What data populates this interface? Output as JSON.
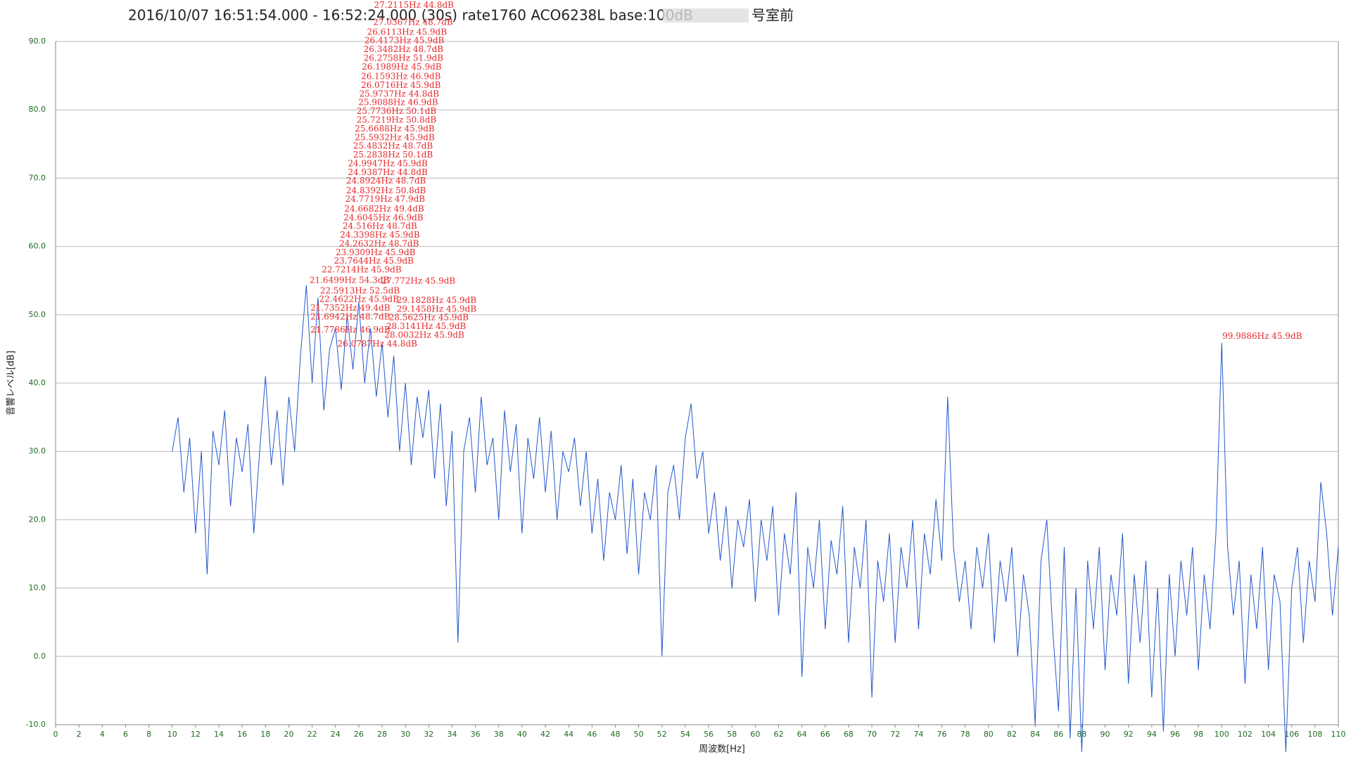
{
  "chart_data": {
    "type": "line",
    "title": "2016/10/07 16:51:54.000 - 16:52:24.000 (30s) rate1760 ACO6238L base:100dB",
    "title_suffix": "号室前",
    "y_label": "音響レベル[dB]",
    "x_label": "周波数[Hz]",
    "color": "#2458cc",
    "grid": true,
    "xlim": [
      0,
      110
    ],
    "xticks": [
      0,
      2,
      4,
      6,
      8,
      10,
      12,
      14,
      16,
      18,
      20,
      22,
      24,
      26,
      28,
      30,
      32,
      34,
      36,
      38,
      40,
      42,
      44,
      46,
      48,
      50,
      52,
      54,
      56,
      58,
      60,
      62,
      64,
      66,
      68,
      70,
      72,
      74,
      76,
      78,
      80,
      82,
      84,
      86,
      88,
      90,
      92,
      94,
      96,
      98,
      100,
      102,
      104,
      106,
      108,
      110
    ],
    "ylim": [
      -10,
      90
    ],
    "yticks": [
      {
        "value": -10,
        "label": "-10.0"
      },
      {
        "value": 0,
        "label": "0.0"
      },
      {
        "value": 10,
        "label": "10.0"
      },
      {
        "value": 20,
        "label": "20.0"
      },
      {
        "value": 30,
        "label": "30.0"
      },
      {
        "value": 40,
        "label": "40.0"
      },
      {
        "value": 50,
        "label": "50.0"
      },
      {
        "value": 60,
        "label": "60.0"
      },
      {
        "value": 70,
        "label": "70.0"
      },
      {
        "value": 80,
        "label": "80.0"
      },
      {
        "value": 90,
        "label": "90.0"
      }
    ],
    "x": [
      10,
      10.5,
      11,
      11.5,
      12,
      12.5,
      13,
      13.5,
      14,
      14.5,
      15,
      15.5,
      16,
      16.5,
      17,
      17.5,
      18,
      18.5,
      19,
      19.5,
      20,
      20.5,
      21,
      21.5,
      22,
      22.5,
      23,
      23.5,
      24,
      24.5,
      25,
      25.5,
      26,
      26.5,
      27,
      27.5,
      28,
      28.5,
      29,
      29.5,
      30,
      30.5,
      31,
      31.5,
      32,
      32.5,
      33,
      33.5,
      34,
      34.5,
      35,
      35.5,
      36,
      36.5,
      37,
      37.5,
      38,
      38.5,
      39,
      39.5,
      40,
      40.5,
      41,
      41.5,
      42,
      42.5,
      43,
      43.5,
      44,
      44.5,
      45,
      45.5,
      46,
      46.5,
      47,
      47.5,
      48,
      48.5,
      49,
      49.5,
      50,
      50.5,
      51,
      51.5,
      52,
      52.5,
      53,
      53.5,
      54,
      54.5,
      55,
      55.5,
      56,
      56.5,
      57,
      57.5,
      58,
      58.5,
      59,
      59.5,
      60,
      60.5,
      61,
      61.5,
      62,
      62.5,
      63,
      63.5,
      64,
      64.5,
      65,
      65.5,
      66,
      66.5,
      67,
      67.5,
      68,
      68.5,
      69,
      69.5,
      70,
      70.5,
      71,
      71.5,
      72,
      72.5,
      73,
      73.5,
      74,
      74.5,
      75,
      75.5,
      76,
      76.5,
      77,
      77.5,
      78,
      78.5,
      79,
      79.5,
      80,
      80.5,
      81,
      81.5,
      82,
      82.5,
      83,
      83.5,
      84,
      84.5,
      85,
      85.5,
      86,
      86.5,
      87,
      87.5,
      88,
      88.5,
      89,
      89.5,
      90,
      90.5,
      91,
      91.5,
      92,
      92.5,
      93,
      93.5,
      94,
      94.5,
      95,
      95.5,
      96,
      96.5,
      97,
      97.5,
      98,
      98.5,
      99,
      99.5,
      100,
      100.5,
      101,
      101.5,
      102,
      102.5,
      103,
      103.5,
      104,
      104.5,
      105,
      105.5,
      106,
      106.5,
      107,
      107.5,
      108,
      108.5,
      109,
      109.5,
      110
    ],
    "values": [
      30,
      35,
      24,
      32,
      18,
      30,
      12,
      33,
      28,
      36,
      22,
      32,
      27,
      34,
      18,
      30,
      41,
      28,
      36,
      25,
      38,
      30,
      44,
      54.3,
      40,
      52.5,
      36,
      45,
      48,
      39,
      50,
      42,
      51.9,
      40,
      48,
      38,
      45.9,
      35,
      44,
      30,
      40,
      28,
      38,
      32,
      39,
      26,
      37,
      22,
      33,
      2,
      30,
      35,
      24,
      38,
      28,
      32,
      20,
      36,
      27,
      34,
      18,
      32,
      26,
      35,
      24,
      33,
      20,
      30,
      27,
      32,
      22,
      30,
      18,
      26,
      14,
      24,
      20,
      28,
      15,
      26,
      12,
      24,
      20,
      28,
      0,
      24,
      28,
      20,
      32,
      37,
      26,
      30,
      18,
      24,
      14,
      22,
      10,
      20,
      16,
      23,
      8,
      20,
      14,
      22,
      6,
      18,
      12,
      24,
      -3,
      16,
      10,
      20,
      4,
      17,
      12,
      22,
      2,
      16,
      10,
      20,
      -6,
      14,
      8,
      18,
      2,
      16,
      10,
      20,
      4,
      18,
      12,
      23,
      14,
      38,
      16,
      8,
      14,
      4,
      16,
      10,
      18,
      2,
      14,
      8,
      16,
      0,
      12,
      6,
      -10,
      14,
      20,
      4,
      -8,
      16,
      -12,
      10,
      -14,
      14,
      4,
      16,
      -2,
      12,
      6,
      18,
      -4,
      12,
      2,
      14,
      -6,
      10,
      -11,
      12,
      0,
      14,
      6,
      16,
      -2,
      12,
      4,
      18,
      45.9,
      16,
      6,
      14,
      -4,
      12,
      4,
      16,
      -2,
      12,
      8,
      -14,
      10,
      16,
      2,
      14,
      8,
      25.5,
      18,
      6,
      16
    ],
    "annotations": [
      "27.2115Hz  44.8dB",
      "27.0367Hz  48.7dB",
      "26.6113Hz  45.9dB",
      "26.4173Hz  45.9dB",
      "26.3482Hz  48.7dB",
      "26.2758Hz  51.9dB",
      "26.1989Hz  45.9dB",
      "26.1593Hz  46.9dB",
      "26.0716Hz  45.9dB",
      "25.9737Hz  44.8dB",
      "25.9088Hz  46.9dB",
      "25.7736Hz  50.1dB",
      "25.7219Hz  50.8dB",
      "25.6688Hz  45.9dB",
      "25.5932Hz  45.9dB",
      "25.4832Hz  48.7dB",
      "25.2838Hz  50.1dB",
      "24.9947Hz  45.9dB",
      "24.9387Hz  44.8dB",
      "24.8924Hz  48.7dB",
      "24.8392Hz  50.8dB",
      "24.7719Hz  47.9dB",
      "24.6682Hz  49.4dB",
      "24.6045Hz  46.9dB",
      "24.516Hz  48.7dB",
      "24.3398Hz  45.9dB",
      "24.2632Hz  48.7dB",
      "23.9309Hz  45.9dB",
      "23.7644Hz  45.9dB",
      "22.7214Hz  45.9dB",
      "21.6499Hz  54.3dB",
      "27.772Hz  45.9dB",
      "22.5913Hz  52.5dB",
      "22.4622Hz  45.9dB",
      "29.1828Hz  45.9dB",
      "21.7352Hz  49.4dB",
      "29.1458Hz  45.9dB",
      "21.6942Hz  48.7dB",
      "28.5625Hz  45.9dB",
      "21.7786Hz  46.9dB",
      "28.3141Hz  45.9dB",
      "28.0032Hz  45.9dB",
      "26.0787Hz  44.8dB",
      "99.9886Hz  45.9dB"
    ]
  }
}
